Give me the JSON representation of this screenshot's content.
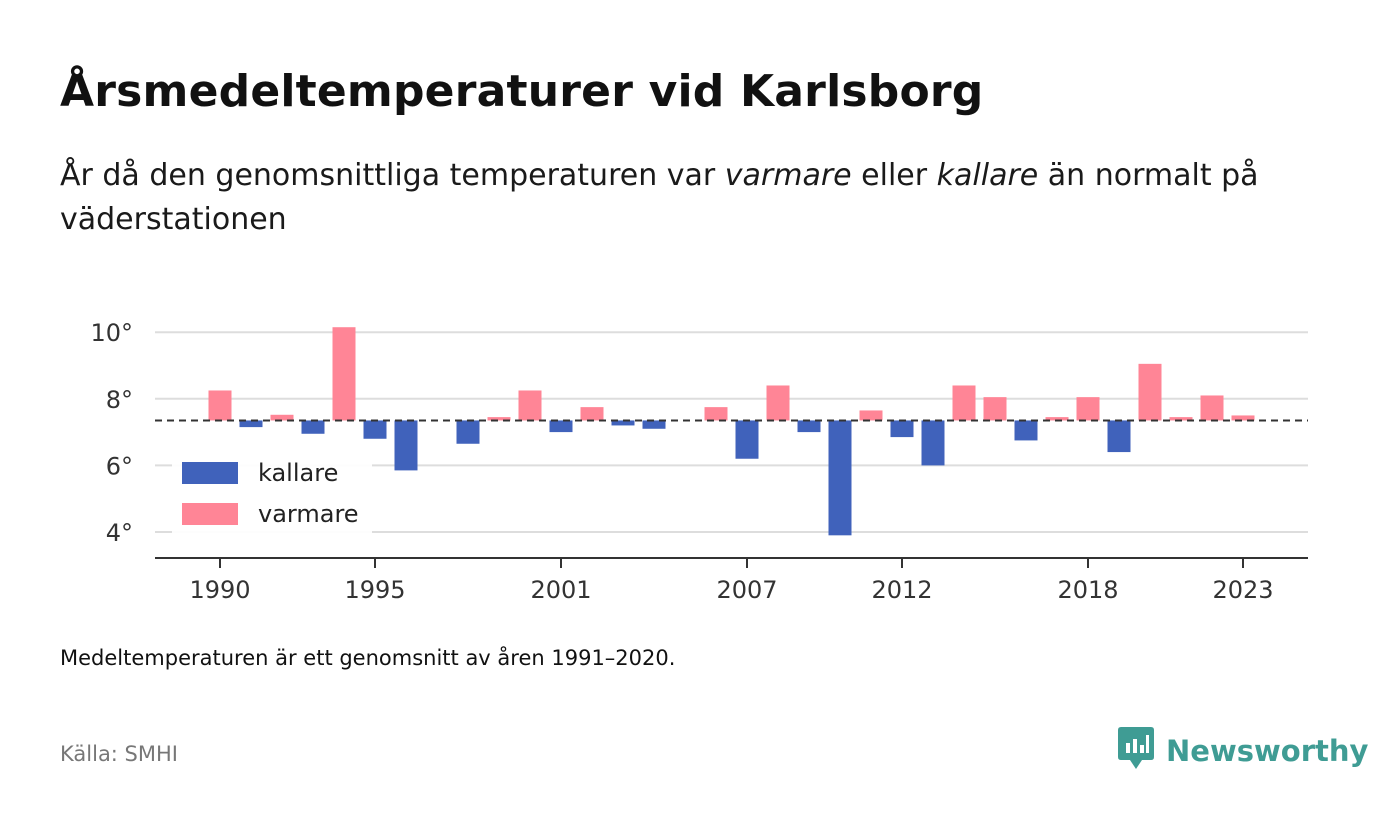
{
  "header": {
    "title": "Årsmedeltemperaturer vid Karlsborg",
    "subtitle_part1": "År då den genomsnittliga temperaturen var ",
    "subtitle_em1": "varmare",
    "subtitle_part2": " eller ",
    "subtitle_em2": "kallare",
    "subtitle_part3": " än normalt på väderstationen"
  },
  "footer": {
    "note": "Medeltemperaturen är ett genomsnitt av åren 1991–2020.",
    "source": "Källa: SMHI",
    "brand": "Newsworthy"
  },
  "colors": {
    "warmer": "#ff8596",
    "colder": "#4062bb",
    "brand": "#3f9c94",
    "grid": "#dddddd",
    "axis": "#333333"
  },
  "chart_data": {
    "type": "bar",
    "baseline": 7.35,
    "ylim": [
      3.3,
      10.5
    ],
    "y_ticks": [
      4,
      6,
      8,
      10
    ],
    "y_tick_labels": [
      "4°",
      "6°",
      "8°",
      "10°"
    ],
    "x_ticks": [
      1990,
      1995,
      2001,
      2007,
      2012,
      2018,
      2023
    ],
    "x_tick_labels": [
      "1990",
      "1995",
      "2001",
      "2007",
      "2012",
      "2018",
      "2023"
    ],
    "legend": [
      {
        "key": "colder",
        "label": "kallare"
      },
      {
        "key": "warmer",
        "label": "varmare"
      }
    ],
    "legend_position": "bottom-left",
    "grid": true,
    "years": [
      1990,
      1991,
      1992,
      1993,
      1994,
      1995,
      1996,
      1997,
      1998,
      1999,
      2000,
      2001,
      2002,
      2003,
      2004,
      2005,
      2006,
      2007,
      2008,
      2009,
      2010,
      2011,
      2012,
      2013,
      2014,
      2015,
      2016,
      2017,
      2018,
      2019,
      2020,
      2021,
      2022,
      2023
    ],
    "values": [
      8.25,
      7.15,
      7.52,
      6.95,
      10.15,
      6.8,
      5.85,
      null,
      6.65,
      7.45,
      8.25,
      7.0,
      7.75,
      7.2,
      7.1,
      null,
      7.75,
      6.2,
      8.4,
      7.0,
      3.9,
      7.65,
      6.85,
      6.0,
      8.4,
      8.05,
      6.75,
      7.45,
      8.05,
      6.4,
      9.05,
      7.45,
      8.1,
      7.5
    ]
  }
}
